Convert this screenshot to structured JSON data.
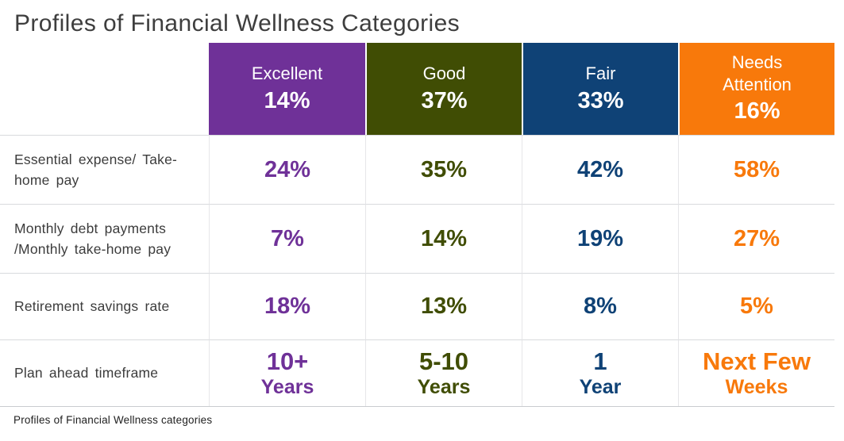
{
  "title": "Profiles of Financial Wellness Categories",
  "caption": "Profiles of Financial Wellness categories",
  "colors": {
    "excellent": "#6f3198",
    "good": "#404d04",
    "fair": "#0f4276",
    "needs_attention": "#f8790b",
    "title_text": "#3e3e3e",
    "row_line": "#d8dadd"
  },
  "table": {
    "columns": [
      {
        "label": "Excellent",
        "pct": "14%",
        "color": "#6f3198"
      },
      {
        "label": "Good",
        "pct": "37%",
        "color": "#404d04"
      },
      {
        "label": "Fair",
        "pct": "33%",
        "color": "#0f4276"
      },
      {
        "label": "Needs Attention",
        "pct": "16%",
        "color": "#f8790b"
      }
    ],
    "rows": [
      {
        "label": "Essential expense/ Take-home pay",
        "values": [
          "24%",
          "35%",
          "42%",
          "58%"
        ]
      },
      {
        "label": "Monthly debt payments /Monthly take-home pay",
        "values": [
          "7%",
          "14%",
          "19%",
          "27%"
        ]
      },
      {
        "label": "Retirement savings rate",
        "values": [
          "18%",
          "13%",
          "8%",
          "5%"
        ]
      },
      {
        "label": "Plan ahead timeframe",
        "values": [
          {
            "line1": "10+",
            "line2": "Years"
          },
          {
            "line1": "5-10",
            "line2": "Years"
          },
          {
            "line1": "1",
            "line2": "Year"
          },
          {
            "line1": "Next Few",
            "line2": "Weeks"
          }
        ]
      }
    ]
  },
  "chart_data": {
    "type": "table",
    "title": "Profiles of Financial Wellness Categories",
    "caption": "Profiles of Financial Wellness categories",
    "categories": [
      "Excellent",
      "Good",
      "Fair",
      "Needs Attention"
    ],
    "category_population_share_pct": [
      14,
      37,
      33,
      16
    ],
    "rows": [
      {
        "metric": "Essential expense/ Take-home pay",
        "values": [
          "24%",
          "35%",
          "42%",
          "58%"
        ]
      },
      {
        "metric": "Monthly debt payments /Monthly take-home pay",
        "values": [
          "7%",
          "14%",
          "19%",
          "27%"
        ]
      },
      {
        "metric": "Retirement savings rate",
        "values": [
          "18%",
          "13%",
          "8%",
          "5%"
        ]
      },
      {
        "metric": "Plan ahead timeframe",
        "values": [
          "10+ Years",
          "5-10 Years",
          "1 Year",
          "Next Few Weeks"
        ]
      }
    ]
  }
}
